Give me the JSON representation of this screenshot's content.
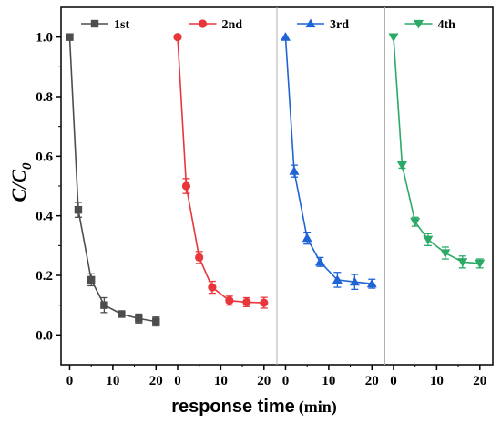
{
  "chart_data": {
    "type": "line",
    "xlabel_main": "response time",
    "xlabel_unit": "(min)",
    "ylabel_main": "C/C",
    "ylabel_sub": "0",
    "ylim": [
      -0.1,
      1.1
    ],
    "y_ticks": [
      "0.0",
      "0.2",
      "0.4",
      "0.6",
      "0.8",
      "1.0"
    ],
    "x_ticks": [
      "0",
      "10",
      "20"
    ],
    "x_range_per_panel": [
      -2,
      23
    ],
    "grid": false,
    "legend_placement": "top of each panel",
    "series": [
      {
        "name": "1st",
        "color": "#4d4d4d",
        "marker": "square",
        "x": [
          0,
          2,
          5,
          8,
          12,
          16,
          20
        ],
        "values": [
          1.0,
          0.42,
          0.185,
          0.1,
          0.07,
          0.055,
          0.045
        ],
        "errors": [
          0,
          0.025,
          0.02,
          0.025,
          0.01,
          0.015,
          0.015
        ]
      },
      {
        "name": "2nd",
        "color": "#e8363a",
        "marker": "circle",
        "x": [
          0,
          2,
          5,
          8,
          12,
          16,
          20
        ],
        "values": [
          1.0,
          0.5,
          0.26,
          0.16,
          0.115,
          0.11,
          0.108
        ],
        "errors": [
          0,
          0.025,
          0.02,
          0.02,
          0.015,
          0.015,
          0.018
        ]
      },
      {
        "name": "3rd",
        "color": "#1f64d4",
        "marker": "triangle-up",
        "x": [
          0,
          2,
          5,
          8,
          12,
          16,
          20
        ],
        "values": [
          1.0,
          0.55,
          0.325,
          0.245,
          0.185,
          0.178,
          0.172
        ],
        "errors": [
          0,
          0.02,
          0.02,
          0.015,
          0.025,
          0.025,
          0.015
        ]
      },
      {
        "name": "4th",
        "color": "#2aaa66",
        "marker": "triangle-down",
        "x": [
          0,
          2,
          5,
          8,
          12,
          16,
          20
        ],
        "values": [
          1.0,
          0.57,
          0.38,
          0.32,
          0.275,
          0.245,
          0.24
        ],
        "errors": [
          0,
          0.01,
          0.015,
          0.02,
          0.02,
          0.02,
          0.015
        ]
      }
    ]
  }
}
